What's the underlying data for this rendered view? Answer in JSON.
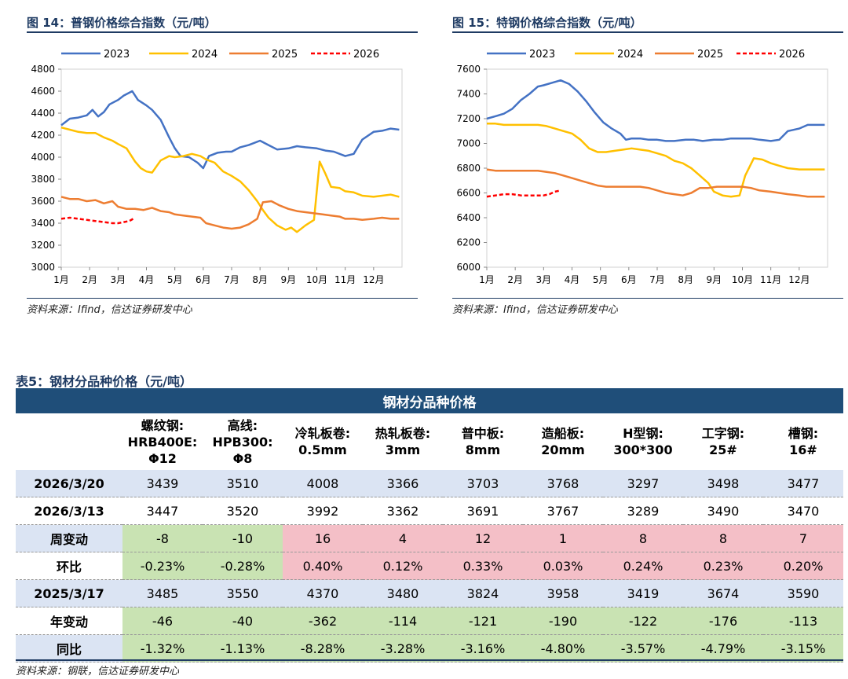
{
  "charts": {
    "left": {
      "figure_title": "图 14：普钢价格综合指数（元/吨）",
      "source": "资料来源：Ifind，信达证券研发中心"
    },
    "right": {
      "figure_title": "图 15：特钢价格综合指数（元/吨）",
      "source": "资料来源：Ifind，信达证券研发中心"
    }
  },
  "chart_data": [
    {
      "type": "line",
      "title": "普钢价格综合指数（元/吨）",
      "xlabel": "",
      "ylabel": "",
      "x_ticks": [
        "1月",
        "2月",
        "3月",
        "4月",
        "5月",
        "6月",
        "7月",
        "8月",
        "9月",
        "10月",
        "11月",
        "12月"
      ],
      "x_range": [
        1,
        13
      ],
      "ylim": [
        3000,
        4800
      ],
      "y_ticks": [
        3000,
        3200,
        3400,
        3600,
        3800,
        4000,
        4200,
        4400,
        4600,
        4800
      ],
      "legend": "top",
      "series": [
        {
          "name": "2023",
          "color": "#4472c4",
          "dashed": false,
          "x": [
            1.0,
            1.3,
            1.6,
            1.9,
            2.1,
            2.3,
            2.5,
            2.7,
            3.0,
            3.2,
            3.5,
            3.7,
            4.0,
            4.2,
            4.5,
            4.8,
            5.0,
            5.2,
            5.5,
            5.8,
            6.0,
            6.2,
            6.5,
            6.8,
            7.0,
            7.3,
            7.6,
            8.0,
            8.3,
            8.6,
            9.0,
            9.3,
            9.6,
            10.0,
            10.3,
            10.6,
            11.0,
            11.3,
            11.6,
            12.0,
            12.3,
            12.6,
            12.9
          ],
          "y": [
            4290,
            4350,
            4360,
            4380,
            4430,
            4370,
            4410,
            4480,
            4520,
            4560,
            4600,
            4520,
            4470,
            4430,
            4340,
            4180,
            4080,
            4010,
            4000,
            3950,
            3900,
            4010,
            4040,
            4050,
            4050,
            4090,
            4110,
            4150,
            4110,
            4070,
            4080,
            4100,
            4090,
            4080,
            4060,
            4050,
            4010,
            4030,
            4160,
            4230,
            4240,
            4260,
            4250
          ]
        },
        {
          "name": "2024",
          "color": "#ffc000",
          "dashed": false,
          "x": [
            1.0,
            1.3,
            1.6,
            1.9,
            2.2,
            2.5,
            2.8,
            3.0,
            3.3,
            3.6,
            3.8,
            4.0,
            4.2,
            4.5,
            4.8,
            5.0,
            5.3,
            5.6,
            5.9,
            6.1,
            6.4,
            6.7,
            7.0,
            7.3,
            7.6,
            7.9,
            8.1,
            8.3,
            8.6,
            8.9,
            9.1,
            9.3,
            9.6,
            9.9,
            10.1,
            10.3,
            10.5,
            10.8,
            11.0,
            11.3,
            11.6,
            12.0,
            12.3,
            12.6,
            12.9
          ],
          "y": [
            4270,
            4250,
            4230,
            4220,
            4220,
            4180,
            4150,
            4120,
            4080,
            3960,
            3900,
            3870,
            3860,
            3970,
            4010,
            4000,
            4010,
            4030,
            4010,
            3980,
            3950,
            3870,
            3830,
            3780,
            3700,
            3600,
            3520,
            3450,
            3380,
            3340,
            3360,
            3320,
            3380,
            3430,
            3960,
            3850,
            3730,
            3720,
            3690,
            3680,
            3650,
            3640,
            3650,
            3660,
            3640
          ]
        },
        {
          "name": "2025",
          "color": "#ed7d31",
          "dashed": false,
          "x": [
            1.0,
            1.3,
            1.6,
            1.9,
            2.2,
            2.5,
            2.8,
            3.0,
            3.3,
            3.6,
            3.9,
            4.2,
            4.5,
            4.8,
            5.0,
            5.3,
            5.6,
            5.9,
            6.1,
            6.4,
            6.7,
            7.0,
            7.3,
            7.6,
            7.9,
            8.1,
            8.4,
            8.7,
            9.0,
            9.3,
            9.6,
            9.9,
            10.2,
            10.5,
            10.8,
            11.0,
            11.3,
            11.6,
            12.0,
            12.3,
            12.6,
            12.9
          ],
          "y": [
            3640,
            3620,
            3620,
            3600,
            3610,
            3580,
            3600,
            3550,
            3530,
            3530,
            3520,
            3540,
            3510,
            3500,
            3480,
            3470,
            3460,
            3450,
            3400,
            3380,
            3360,
            3350,
            3360,
            3390,
            3440,
            3590,
            3600,
            3560,
            3530,
            3510,
            3500,
            3490,
            3480,
            3470,
            3460,
            3440,
            3440,
            3430,
            3440,
            3450,
            3440,
            3440
          ]
        },
        {
          "name": "2026",
          "color": "#ff0000",
          "dashed": true,
          "x": [
            1.0,
            1.3,
            1.6,
            1.9,
            2.2,
            2.5,
            2.8,
            3.0,
            3.2,
            3.4,
            3.6
          ],
          "y": [
            3440,
            3450,
            3440,
            3430,
            3420,
            3410,
            3400,
            3400,
            3410,
            3420,
            3450
          ]
        }
      ]
    },
    {
      "type": "line",
      "title": "特钢价格综合指数（元/吨）",
      "xlabel": "",
      "ylabel": "",
      "x_ticks": [
        "1月",
        "2月",
        "3月",
        "4月",
        "5月",
        "6月",
        "7月",
        "8月",
        "9月",
        "10月",
        "11月",
        "12月"
      ],
      "x_range": [
        1,
        13
      ],
      "ylim": [
        6000,
        7600
      ],
      "y_ticks": [
        6000,
        6200,
        6400,
        6600,
        6800,
        7000,
        7200,
        7400,
        7600
      ],
      "legend": "top",
      "series": [
        {
          "name": "2023",
          "color": "#4472c4",
          "dashed": false,
          "x": [
            1.0,
            1.3,
            1.6,
            1.9,
            2.2,
            2.5,
            2.8,
            3.0,
            3.3,
            3.6,
            3.9,
            4.2,
            4.5,
            4.8,
            5.1,
            5.4,
            5.7,
            5.9,
            6.1,
            6.4,
            6.7,
            7.0,
            7.3,
            7.6,
            8.0,
            8.3,
            8.6,
            9.0,
            9.3,
            9.6,
            10.0,
            10.3,
            10.6,
            11.0,
            11.3,
            11.6,
            12.0,
            12.3,
            12.6,
            12.9
          ],
          "y": [
            7200,
            7220,
            7240,
            7280,
            7350,
            7400,
            7460,
            7470,
            7490,
            7510,
            7480,
            7420,
            7340,
            7250,
            7170,
            7120,
            7080,
            7030,
            7040,
            7040,
            7030,
            7030,
            7020,
            7020,
            7030,
            7030,
            7020,
            7030,
            7030,
            7040,
            7040,
            7040,
            7030,
            7020,
            7030,
            7100,
            7120,
            7150,
            7150,
            7150
          ]
        },
        {
          "name": "2024",
          "color": "#ffc000",
          "dashed": false,
          "x": [
            1.0,
            1.3,
            1.6,
            1.9,
            2.2,
            2.5,
            2.8,
            3.1,
            3.4,
            3.7,
            4.0,
            4.3,
            4.6,
            4.9,
            5.2,
            5.5,
            5.8,
            6.1,
            6.4,
            6.7,
            7.0,
            7.3,
            7.6,
            7.9,
            8.2,
            8.5,
            8.8,
            9.0,
            9.3,
            9.6,
            9.9,
            10.1,
            10.4,
            10.7,
            11.0,
            11.3,
            11.6,
            12.0,
            12.3,
            12.6,
            12.9
          ],
          "y": [
            7160,
            7160,
            7150,
            7150,
            7150,
            7150,
            7150,
            7140,
            7120,
            7100,
            7080,
            7030,
            6960,
            6930,
            6930,
            6940,
            6950,
            6960,
            6950,
            6940,
            6920,
            6900,
            6860,
            6840,
            6800,
            6740,
            6680,
            6610,
            6580,
            6570,
            6580,
            6740,
            6880,
            6870,
            6840,
            6820,
            6800,
            6790,
            6790,
            6790,
            6790
          ]
        },
        {
          "name": "2025",
          "color": "#ed7d31",
          "dashed": false,
          "x": [
            1.0,
            1.3,
            1.6,
            1.9,
            2.2,
            2.5,
            2.8,
            3.1,
            3.4,
            3.7,
            4.0,
            4.3,
            4.6,
            4.9,
            5.2,
            5.5,
            5.8,
            6.1,
            6.4,
            6.7,
            7.0,
            7.3,
            7.6,
            7.9,
            8.2,
            8.5,
            8.8,
            9.1,
            9.4,
            9.7,
            10.0,
            10.3,
            10.6,
            11.0,
            11.3,
            11.6,
            12.0,
            12.3,
            12.6,
            12.9
          ],
          "y": [
            6790,
            6780,
            6780,
            6780,
            6780,
            6780,
            6780,
            6770,
            6760,
            6740,
            6720,
            6700,
            6680,
            6660,
            6650,
            6650,
            6650,
            6650,
            6650,
            6640,
            6620,
            6600,
            6590,
            6580,
            6600,
            6640,
            6640,
            6650,
            6650,
            6650,
            6650,
            6640,
            6620,
            6610,
            6600,
            6590,
            6580,
            6570,
            6570,
            6570
          ]
        },
        {
          "name": "2026",
          "color": "#ff0000",
          "dashed": true,
          "x": [
            1.0,
            1.3,
            1.6,
            1.9,
            2.2,
            2.5,
            2.8,
            3.0,
            3.2,
            3.4,
            3.6
          ],
          "y": [
            6570,
            6580,
            6590,
            6590,
            6580,
            6580,
            6580,
            6580,
            6590,
            6610,
            6620
          ]
        }
      ]
    }
  ],
  "table": {
    "title": "表5：钢材分品种价格（元/吨）",
    "banner": "钢材分品种价格",
    "columns": [
      {
        "l1": "螺纹钢:",
        "l2": "HRB400E:",
        "l3": "Φ12"
      },
      {
        "l1": "高线:",
        "l2": "HPB300:",
        "l3": "Φ8"
      },
      {
        "l1": "冷轧板卷:",
        "l2": "0.5mm",
        "l3": ""
      },
      {
        "l1": "热轧板卷:",
        "l2": "3mm",
        "l3": ""
      },
      {
        "l1": "普中板:",
        "l2": "8mm",
        "l3": ""
      },
      {
        "l1": "造船板:",
        "l2": "20mm",
        "l3": ""
      },
      {
        "l1": "H型钢:",
        "l2": "300*300",
        "l3": ""
      },
      {
        "l1": "工字钢:",
        "l2": "25#",
        "l3": ""
      },
      {
        "l1": "槽钢:",
        "l2": "16#",
        "l3": ""
      }
    ],
    "rows": [
      {
        "label": "2026/3/20",
        "values": [
          "3439",
          "3510",
          "4008",
          "3366",
          "3703",
          "3768",
          "3297",
          "3498",
          "3477"
        ]
      },
      {
        "label": "2026/3/13",
        "values": [
          "3447",
          "3520",
          "3992",
          "3362",
          "3691",
          "3767",
          "3289",
          "3490",
          "3470"
        ]
      },
      {
        "label": "周变动",
        "values": [
          "-8",
          "-10",
          "16",
          "4",
          "12",
          "1",
          "8",
          "8",
          "7"
        ]
      },
      {
        "label": "环比",
        "values": [
          "-0.23%",
          "-0.28%",
          "0.40%",
          "0.12%",
          "0.33%",
          "0.03%",
          "0.24%",
          "0.23%",
          "0.20%"
        ]
      },
      {
        "label": "2025/3/17",
        "values": [
          "3485",
          "3550",
          "4370",
          "3480",
          "3824",
          "3958",
          "3419",
          "3674",
          "3590"
        ]
      },
      {
        "label": "年变动",
        "values": [
          "-46",
          "-40",
          "-362",
          "-114",
          "-121",
          "-190",
          "-122",
          "-176",
          "-113"
        ]
      },
      {
        "label": "同比",
        "values": [
          "-1.32%",
          "-1.13%",
          "-8.28%",
          "-3.28%",
          "-3.16%",
          "-4.80%",
          "-3.57%",
          "-4.79%",
          "-3.15%"
        ]
      }
    ],
    "source": "资料来源：钢联，信达证券研发中心"
  }
}
